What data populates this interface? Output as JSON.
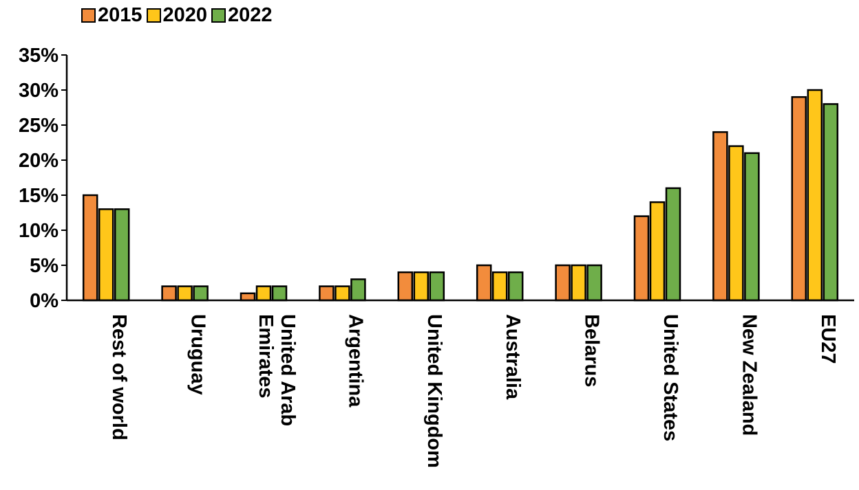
{
  "chart_data": {
    "type": "bar",
    "title": "",
    "xlabel": "",
    "ylabel": "",
    "ylim": [
      0,
      35
    ],
    "y_ticks": [
      "0%",
      "5%",
      "10%",
      "15%",
      "20%",
      "25%",
      "30%",
      "35%"
    ],
    "y_tick_values": [
      0,
      5,
      10,
      15,
      20,
      25,
      30,
      35
    ],
    "grid": false,
    "legend_position": "top-left",
    "categories": [
      "Rest of world",
      "Uruguay",
      "United Arab Emirates",
      "Argentina",
      "United Kingdom",
      "Australia",
      "Belarus",
      "United States",
      "New Zealand",
      "EU27"
    ],
    "category_label_lines": [
      [
        "Rest of world"
      ],
      [
        "Uruguay"
      ],
      [
        "United Arab",
        "Emirates"
      ],
      [
        "Argentina"
      ],
      [
        "United Kingdom"
      ],
      [
        "Australia"
      ],
      [
        "Belarus"
      ],
      [
        "United States"
      ],
      [
        "New Zealand"
      ],
      [
        "EU27"
      ]
    ],
    "series": [
      {
        "name": "2015",
        "color": "#F28C3C",
        "values": [
          15,
          2,
          1,
          2,
          4,
          5,
          5,
          12,
          24,
          29
        ]
      },
      {
        "name": "2020",
        "color": "#FFC61A",
        "values": [
          13,
          2,
          2,
          2,
          4,
          4,
          5,
          14,
          22,
          30
        ]
      },
      {
        "name": "2022",
        "color": "#6FAE4A",
        "values": [
          13,
          2,
          2,
          3,
          4,
          4,
          5,
          16,
          21,
          28
        ]
      }
    ]
  }
}
